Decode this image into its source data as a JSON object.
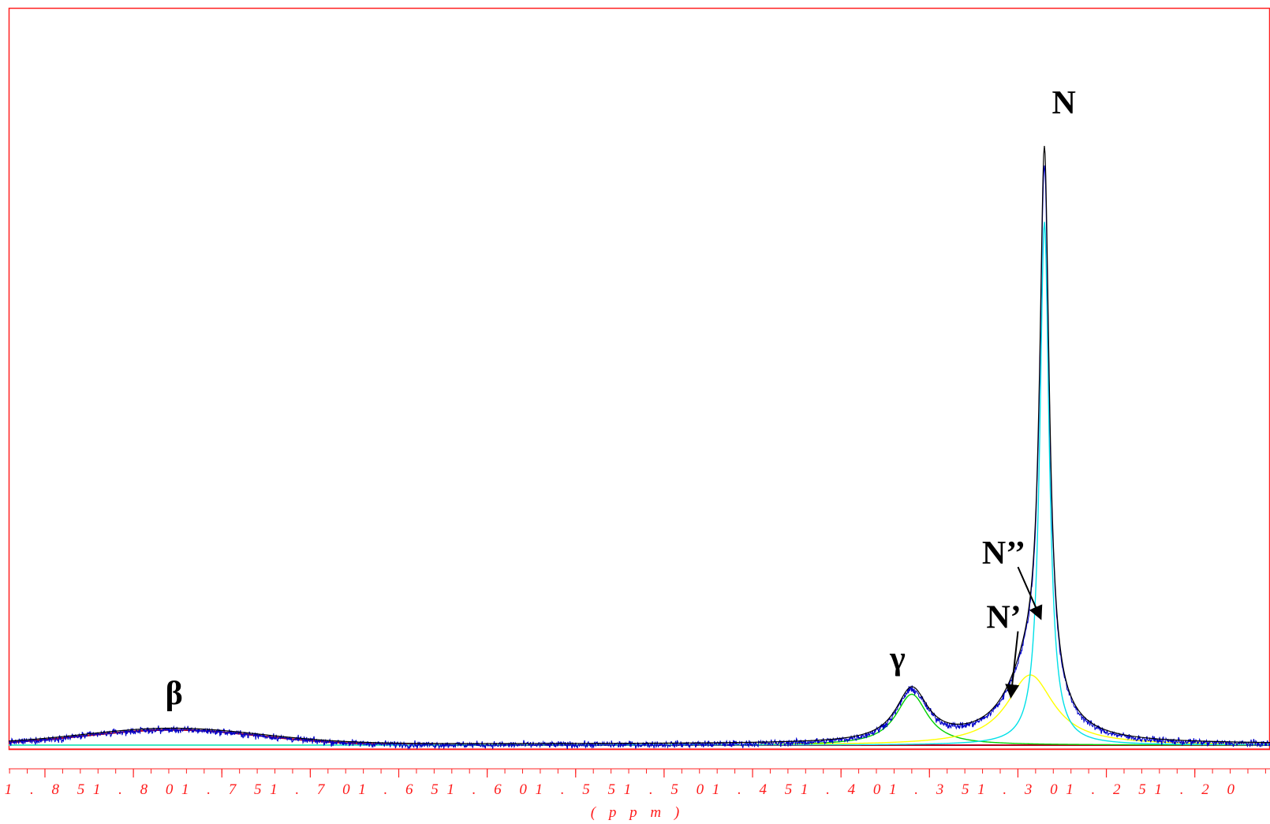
{
  "chart_data": {
    "type": "line",
    "title": "",
    "xlabel": "( p p m )",
    "ylabel": "",
    "x_reversed": true,
    "xlim": [
      1.8705,
      1.1575
    ],
    "ylim": [
      -0.02,
      1.2
    ],
    "grid": false,
    "legend": "none",
    "x_ticks": [
      1.85,
      1.8,
      1.75,
      1.7,
      1.65,
      1.6,
      1.55,
      1.5,
      1.45,
      1.4,
      1.35,
      1.3,
      1.25,
      1.2
    ],
    "x_tick_labels": [
      "1 . 8 5",
      "1 . 8 0",
      "1 . 7 5",
      "1 . 7 0",
      "1 . 6 5",
      "1 . 6 0",
      "1 . 5 5",
      "1 . 5 0",
      "1 . 4 5",
      "1 . 4 0",
      "1 . 3 5",
      "1 . 3 0",
      "1 . 2 5",
      "1 . 2 0"
    ],
    "peaks": [
      {
        "name": "β",
        "center_ppm": 1.778,
        "height": 0.026,
        "width_ppm": 0.05,
        "shape": "gaussian",
        "color": "#b00020"
      },
      {
        "name": "γ",
        "center_ppm": 1.36,
        "height": 0.087,
        "width_ppm": 0.011,
        "shape": "lorentzian",
        "color": "#00d000"
      },
      {
        "name": "N'",
        "center_ppm": 1.293,
        "height": 0.12,
        "width_ppm": 0.016,
        "shape": "lorentzian",
        "color": "#ffff00"
      },
      {
        "name": "N",
        "center_ppm": 1.285,
        "height": 0.895,
        "width_ppm": 0.0032,
        "shape": "lorentzian",
        "color": "#00e0e8"
      }
    ],
    "series": [
      {
        "role": "experimental",
        "color": "#0000c8"
      },
      {
        "role": "fit",
        "color": "#000000"
      }
    ],
    "annotations": [
      {
        "label": "N",
        "x_ppm": 1.274,
        "y": 1.08
      },
      {
        "label": "N’’",
        "x_ppm": 1.308,
        "y": 0.31,
        "arrow_to": [
          1.287,
          0.216
        ]
      },
      {
        "label": "N’",
        "x_ppm": 1.308,
        "y": 0.2,
        "arrow_to": [
          1.304,
          0.082
        ]
      },
      {
        "label": "γ",
        "x_ppm": 1.368,
        "y": 0.13
      },
      {
        "label": "β",
        "x_ppm": 1.777,
        "y": 0.07
      }
    ]
  },
  "colors": {
    "frame": "#ff2020",
    "baseline": "#ff2020",
    "axis_text": "#ff1a1a"
  }
}
